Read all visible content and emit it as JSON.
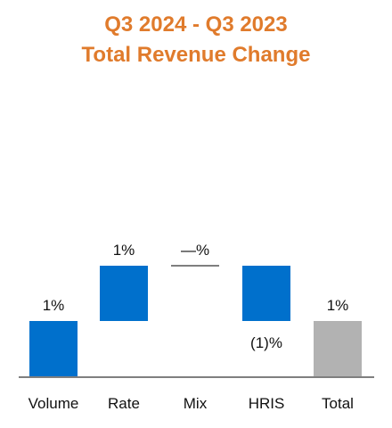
{
  "chart_data": {
    "type": "bar",
    "subtype": "waterfall",
    "title_lines": [
      "Q3 2024 - Q3 2023",
      "Total Revenue Change"
    ],
    "categories": [
      "Volume",
      "Rate",
      "Mix",
      "HRIS",
      "Total"
    ],
    "values": [
      1,
      1,
      0,
      -1,
      1
    ],
    "data_labels": [
      "1%",
      "1%",
      "—%",
      "(1)%",
      "1%"
    ],
    "bar_kind": [
      "change",
      "change",
      "change",
      "change",
      "total"
    ],
    "colors": {
      "title": "#e07b2c",
      "change": "#0070cc",
      "total": "#b2b2b2",
      "zero_change": "#7f7f7f",
      "axis": "#7f7f7f"
    },
    "legend": "none",
    "grid": false
  }
}
